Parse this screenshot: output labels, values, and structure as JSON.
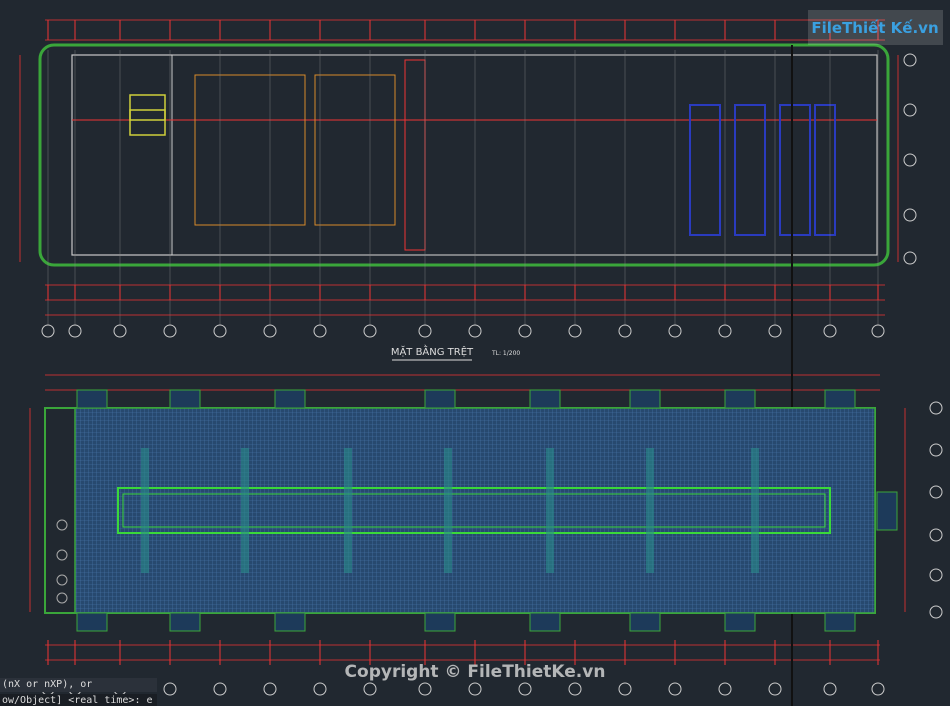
{
  "drawing": {
    "plan_title": "MẶT BẰNG TRỆT",
    "scale": "TL: 1/200"
  },
  "watermark": {
    "logo": "FileThiết Kế.vn",
    "copyright": "Copyright © FileThietKe.vn"
  },
  "command_line": {
    "line1": "(nX or nXP), or",
    "line2": "ow/Object] <real time>: e"
  }
}
